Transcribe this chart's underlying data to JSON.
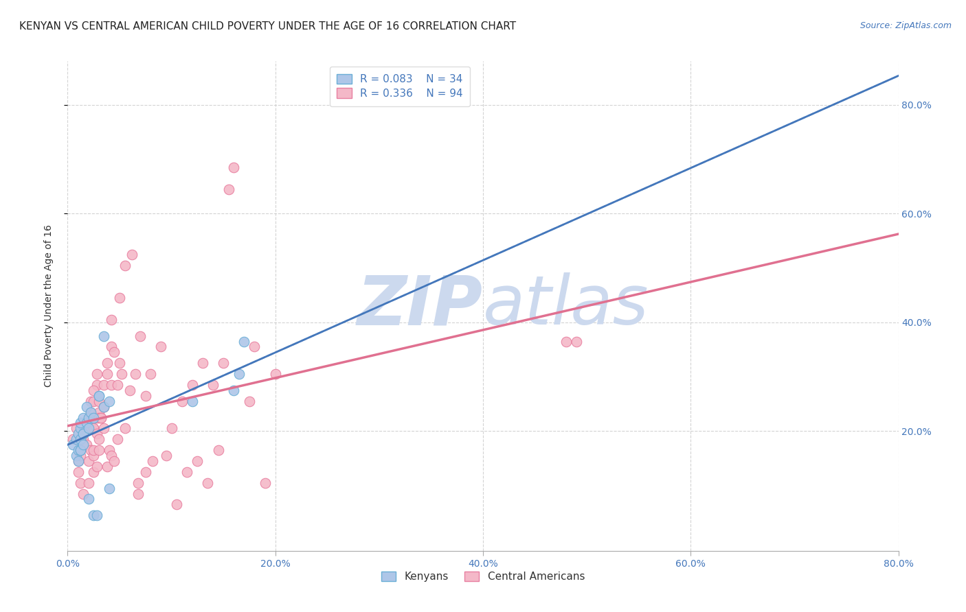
{
  "title": "KENYAN VS CENTRAL AMERICAN CHILD POVERTY UNDER THE AGE OF 16 CORRELATION CHART",
  "source": "Source: ZipAtlas.com",
  "ylabel": "Child Poverty Under the Age of 16",
  "xlim": [
    0.0,
    0.8
  ],
  "ylim": [
    -0.02,
    0.88
  ],
  "xticks": [
    0.0,
    0.2,
    0.4,
    0.6,
    0.8
  ],
  "yticks": [
    0.2,
    0.4,
    0.6,
    0.8
  ],
  "xticklabels": [
    "0.0%",
    "20.0%",
    "40.0%",
    "60.0%",
    "80.0%"
  ],
  "right_yticklabels": [
    "20.0%",
    "40.0%",
    "60.0%",
    "80.0%"
  ],
  "kenyan_color": "#aec6e8",
  "central_american_color": "#f4b8c8",
  "kenyan_edge_color": "#6aaed6",
  "central_american_edge_color": "#e87fa0",
  "kenyan_R": 0.083,
  "kenyan_N": 34,
  "central_american_R": 0.336,
  "central_american_N": 94,
  "background_color": "#ffffff",
  "grid_color": "#c8c8c8",
  "watermark_zip": "ZIP",
  "watermark_atlas": "atlas",
  "watermark_color": "#ccd9ee",
  "kenyan_x": [
    0.005,
    0.008,
    0.01,
    0.012,
    0.008,
    0.01,
    0.012,
    0.015,
    0.012,
    0.015,
    0.018,
    0.01,
    0.012,
    0.018,
    0.012,
    0.015,
    0.02,
    0.015,
    0.022,
    0.02,
    0.02,
    0.025,
    0.028,
    0.025,
    0.03,
    0.035,
    0.03,
    0.035,
    0.04,
    0.04,
    0.12,
    0.16,
    0.165,
    0.17
  ],
  "kenyan_y": [
    0.175,
    0.185,
    0.195,
    0.205,
    0.155,
    0.165,
    0.185,
    0.195,
    0.215,
    0.225,
    0.245,
    0.145,
    0.165,
    0.215,
    0.165,
    0.195,
    0.225,
    0.175,
    0.235,
    0.205,
    0.075,
    0.045,
    0.045,
    0.225,
    0.265,
    0.375,
    0.265,
    0.245,
    0.255,
    0.095,
    0.255,
    0.275,
    0.305,
    0.365
  ],
  "central_american_x": [
    0.005,
    0.008,
    0.01,
    0.012,
    0.015,
    0.018,
    0.02,
    0.022,
    0.012,
    0.015,
    0.018,
    0.02,
    0.01,
    0.015,
    0.018,
    0.022,
    0.028,
    0.012,
    0.018,
    0.022,
    0.025,
    0.015,
    0.02,
    0.025,
    0.028,
    0.03,
    0.025,
    0.028,
    0.022,
    0.025,
    0.03,
    0.025,
    0.028,
    0.032,
    0.038,
    0.02,
    0.025,
    0.03,
    0.035,
    0.025,
    0.03,
    0.035,
    0.042,
    0.028,
    0.032,
    0.038,
    0.03,
    0.035,
    0.042,
    0.035,
    0.038,
    0.042,
    0.04,
    0.045,
    0.042,
    0.048,
    0.045,
    0.05,
    0.048,
    0.052,
    0.05,
    0.055,
    0.055,
    0.06,
    0.062,
    0.065,
    0.068,
    0.07,
    0.068,
    0.075,
    0.075,
    0.08,
    0.082,
    0.09,
    0.095,
    0.1,
    0.105,
    0.11,
    0.115,
    0.12,
    0.125,
    0.13,
    0.135,
    0.14,
    0.145,
    0.15,
    0.155,
    0.16,
    0.175,
    0.18,
    0.19,
    0.2,
    0.48,
    0.49
  ],
  "central_american_y": [
    0.185,
    0.205,
    0.145,
    0.175,
    0.195,
    0.205,
    0.225,
    0.255,
    0.155,
    0.175,
    0.205,
    0.225,
    0.125,
    0.185,
    0.205,
    0.235,
    0.285,
    0.105,
    0.175,
    0.225,
    0.255,
    0.085,
    0.145,
    0.205,
    0.225,
    0.255,
    0.275,
    0.305,
    0.165,
    0.205,
    0.235,
    0.155,
    0.195,
    0.225,
    0.325,
    0.105,
    0.165,
    0.225,
    0.285,
    0.125,
    0.185,
    0.245,
    0.355,
    0.135,
    0.225,
    0.305,
    0.165,
    0.245,
    0.405,
    0.205,
    0.135,
    0.285,
    0.165,
    0.345,
    0.155,
    0.285,
    0.145,
    0.325,
    0.185,
    0.305,
    0.445,
    0.205,
    0.505,
    0.275,
    0.525,
    0.305,
    0.105,
    0.375,
    0.085,
    0.265,
    0.125,
    0.305,
    0.145,
    0.355,
    0.155,
    0.205,
    0.065,
    0.255,
    0.125,
    0.285,
    0.145,
    0.325,
    0.105,
    0.285,
    0.165,
    0.325,
    0.645,
    0.685,
    0.255,
    0.355,
    0.105,
    0.305,
    0.365,
    0.365
  ],
  "title_fontsize": 11,
  "axis_label_fontsize": 10,
  "tick_fontsize": 10,
  "legend_fontsize": 11,
  "source_fontsize": 9
}
